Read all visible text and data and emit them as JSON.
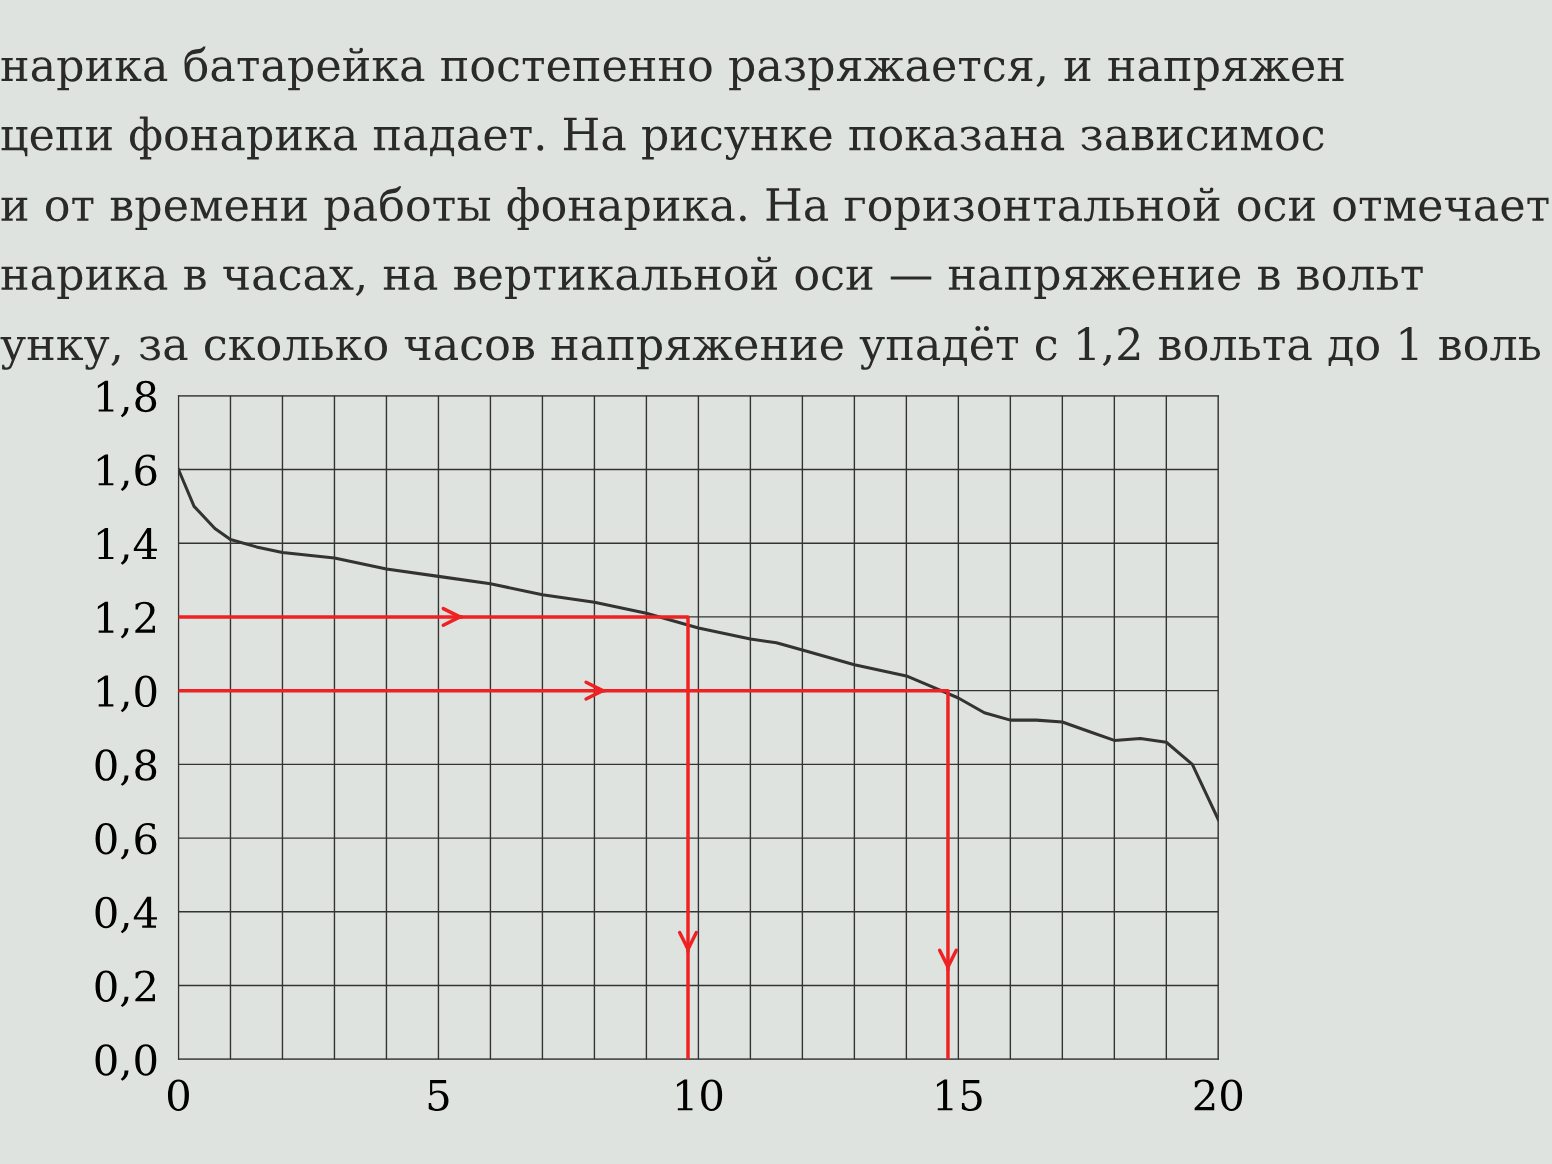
{
  "chart_data": {
    "type": "line",
    "annotations": [
      "нарика батарейка постепенно разряжается, и напряжен",
      "цепи фонарика падает. На рисунке показана зависимос",
      "и от времени работы фонарика. На горизонтальной оси отмечает",
      "нарика в часах, на вертикальной оси — напряжение в вольт",
      "унку, за сколько часов напряжение упадёт с 1,2 вольта до 1 воль"
    ],
    "series": [
      {
        "color": "#333333",
        "x": [
          0,
          0.3,
          0.7,
          1,
          1.5,
          2,
          3,
          4,
          5,
          6,
          7,
          8,
          9,
          10,
          11,
          11.5,
          12,
          13,
          14,
          14.5,
          15,
          15.5,
          16,
          16.5,
          17,
          17.5,
          18,
          18.5,
          19,
          19.5,
          20
        ],
        "values": [
          1.6,
          1.5,
          1.44,
          1.41,
          1.39,
          1.375,
          1.36,
          1.33,
          1.31,
          1.29,
          1.26,
          1.24,
          1.21,
          1.17,
          1.14,
          1.13,
          1.11,
          1.07,
          1.04,
          1.01,
          0.98,
          0.94,
          0.92,
          0.92,
          0.915,
          0.89,
          0.865,
          0.87,
          0.86,
          0.8,
          0.65
        ]
      },
      {
        "color": "#ee2222",
        "x": [
          0,
          9.8,
          9.8
        ],
        "values": [
          1.2,
          1.2,
          0
        ]
      },
      {
        "color": "#ee2222",
        "x": [
          0,
          14.8,
          14.8
        ],
        "values": [
          1.0,
          1.0,
          0
        ]
      }
    ],
    "xlim": [
      0,
      20
    ],
    "xticks": [
      0,
      5,
      10,
      15,
      20
    ],
    "ylim": [
      0,
      1.8
    ],
    "yticks": [
      {
        "value": 0,
        "label": "0,0"
      },
      {
        "value": 0.2,
        "label": "0,2"
      },
      {
        "value": 0.4,
        "label": "0,4"
      },
      {
        "value": 0.6,
        "label": "0,6"
      },
      {
        "value": 0.8,
        "label": "0,8"
      },
      {
        "value": 1.0,
        "label": "1,0"
      },
      {
        "value": 1.2,
        "label": "1,2"
      },
      {
        "value": 1.4,
        "label": "1,4"
      },
      {
        "value": 1.6,
        "label": "1,6"
      },
      {
        "value": 1.8,
        "label": "1,8"
      }
    ],
    "grid": true,
    "line_style": "solid",
    "marker": "none"
  }
}
